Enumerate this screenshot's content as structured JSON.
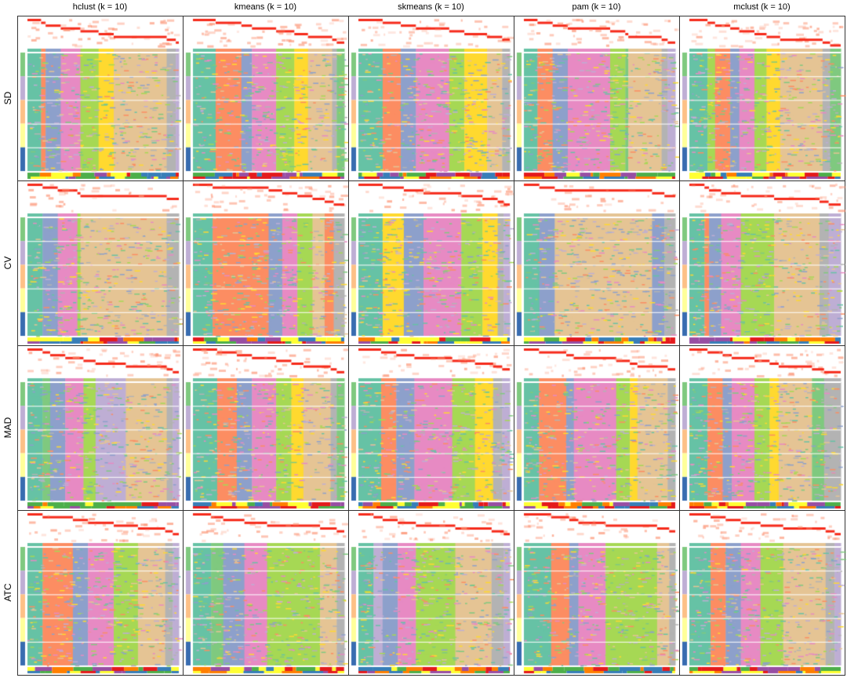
{
  "chart_data": {
    "type": "heatmap",
    "columns": [
      "hclust (k = 10)",
      "kmeans (k = 10)",
      "skmeans (k = 10)",
      "pam (k = 10)",
      "mclust (k = 10)"
    ],
    "rows": [
      "SD",
      "CV",
      "MAD",
      "ATC"
    ],
    "class_colors": [
      "#66C2A5",
      "#FC8D62",
      "#8DA0CB",
      "#E78AC3",
      "#A6D854",
      "#FFD92F",
      "#E5C494",
      "#B3B3B3",
      "#BEAED4",
      "#7FC97F"
    ],
    "row_annotation_colors": [
      "#7FC97F",
      "#BEAED4",
      "#FDC086",
      "#FFFF99",
      "#386CB0"
    ],
    "panels": [
      [
        {
          "classes": [
            [
              0,
              9
            ],
            [
              1,
              3
            ],
            [
              2,
              10
            ],
            [
              3,
              13
            ],
            [
              4,
              12
            ],
            [
              5,
              10
            ],
            [
              6,
              35
            ],
            [
              7,
              6
            ],
            [
              8,
              2
            ]
          ]
        },
        {
          "classes": [
            [
              0,
              15
            ],
            [
              1,
              17
            ],
            [
              2,
              7
            ],
            [
              3,
              16
            ],
            [
              4,
              12
            ],
            [
              5,
              9
            ],
            [
              6,
              16
            ],
            [
              7,
              3
            ],
            [
              9,
              5
            ]
          ]
        },
        {
          "classes": [
            [
              0,
              16
            ],
            [
              1,
              12
            ],
            [
              2,
              10
            ],
            [
              3,
              22
            ],
            [
              4,
              10
            ],
            [
              5,
              15
            ],
            [
              6,
              10
            ],
            [
              7,
              5
            ]
          ]
        },
        {
          "classes": [
            [
              0,
              9
            ],
            [
              1,
              10
            ],
            [
              2,
              10
            ],
            [
              3,
              28
            ],
            [
              4,
              10
            ],
            [
              9,
              2
            ],
            [
              6,
              22
            ],
            [
              7,
              4
            ],
            [
              8,
              5
            ]
          ]
        },
        {
          "classes": [
            [
              0,
              12
            ],
            [
              4,
              5
            ],
            [
              1,
              10
            ],
            [
              2,
              6
            ],
            [
              3,
              10
            ],
            [
              4,
              8
            ],
            [
              5,
              9
            ],
            [
              6,
              28
            ],
            [
              7,
              5
            ],
            [
              9,
              7
            ]
          ]
        }
      ],
      [
        {
          "classes": [
            [
              0,
              10
            ],
            [
              2,
              10
            ],
            [
              3,
              13
            ],
            [
              4,
              2
            ],
            [
              6,
              57
            ],
            [
              7,
              8
            ]
          ]
        },
        {
          "classes": [
            [
              0,
              13
            ],
            [
              1,
              37
            ],
            [
              2,
              9
            ],
            [
              3,
              10
            ],
            [
              4,
              10
            ],
            [
              6,
              8
            ],
            [
              1,
              6
            ],
            [
              7,
              7
            ]
          ]
        },
        {
          "classes": [
            [
              0,
              16
            ],
            [
              5,
              14
            ],
            [
              2,
              13
            ],
            [
              3,
              25
            ],
            [
              4,
              14
            ],
            [
              5,
              10
            ],
            [
              7,
              4
            ],
            [
              8,
              4
            ]
          ]
        },
        {
          "classes": [
            [
              0,
              10
            ],
            [
              2,
              10
            ],
            [
              6,
              63
            ],
            [
              2,
              8
            ],
            [
              7,
              7
            ]
          ]
        },
        {
          "classes": [
            [
              0,
              10
            ],
            [
              1,
              3
            ],
            [
              2,
              8
            ],
            [
              3,
              13
            ],
            [
              4,
              22
            ],
            [
              6,
              30
            ],
            [
              7,
              6
            ],
            [
              8,
              8
            ]
          ]
        }
      ],
      [
        {
          "classes": [
            [
              0,
              10
            ],
            [
              9,
              5
            ],
            [
              2,
              10
            ],
            [
              3,
              12
            ],
            [
              4,
              8
            ],
            [
              8,
              20
            ],
            [
              6,
              27
            ],
            [
              7,
              4
            ],
            [
              8,
              4
            ]
          ]
        },
        {
          "classes": [
            [
              0,
              16
            ],
            [
              1,
              13
            ],
            [
              2,
              10
            ],
            [
              3,
              16
            ],
            [
              4,
              10
            ],
            [
              5,
              8
            ],
            [
              6,
              18
            ],
            [
              7,
              4
            ],
            [
              9,
              5
            ]
          ]
        },
        {
          "classes": [
            [
              0,
              15
            ],
            [
              1,
              10
            ],
            [
              2,
              12
            ],
            [
              3,
              25
            ],
            [
              4,
              15
            ],
            [
              5,
              12
            ],
            [
              7,
              6
            ],
            [
              8,
              5
            ]
          ]
        },
        {
          "classes": [
            [
              0,
              10
            ],
            [
              1,
              18
            ],
            [
              2,
              5
            ],
            [
              3,
              28
            ],
            [
              4,
              9
            ],
            [
              5,
              5
            ],
            [
              6,
              20
            ],
            [
              7,
              5
            ]
          ]
        },
        {
          "classes": [
            [
              0,
              12
            ],
            [
              1,
              10
            ],
            [
              2,
              6
            ],
            [
              3,
              15
            ],
            [
              4,
              10
            ],
            [
              5,
              6
            ],
            [
              6,
              22
            ],
            [
              9,
              8
            ],
            [
              7,
              11
            ]
          ]
        }
      ],
      [
        {
          "classes": [
            [
              0,
              10
            ],
            [
              1,
              20
            ],
            [
              2,
              10
            ],
            [
              3,
              17
            ],
            [
              4,
              16
            ],
            [
              6,
              18
            ],
            [
              7,
              5
            ],
            [
              8,
              4
            ]
          ]
        },
        {
          "classes": [
            [
              0,
              12
            ],
            [
              9,
              8
            ],
            [
              2,
              14
            ],
            [
              3,
              15
            ],
            [
              4,
              35
            ],
            [
              6,
              11
            ],
            [
              7,
              5
            ]
          ]
        },
        {
          "classes": [
            [
              0,
              10
            ],
            [
              8,
              6
            ],
            [
              2,
              10
            ],
            [
              3,
              12
            ],
            [
              4,
              26
            ],
            [
              6,
              24
            ],
            [
              7,
              8
            ],
            [
              8,
              4
            ]
          ]
        },
        {
          "classes": [
            [
              0,
              18
            ],
            [
              1,
              12
            ],
            [
              2,
              6
            ],
            [
              3,
              18
            ],
            [
              4,
              34
            ],
            [
              6,
              8
            ],
            [
              7,
              4
            ]
          ]
        },
        {
          "classes": [
            [
              0,
              14
            ],
            [
              1,
              10
            ],
            [
              2,
              10
            ],
            [
              3,
              13
            ],
            [
              4,
              15
            ],
            [
              6,
              28
            ],
            [
              7,
              6
            ],
            [
              8,
              4
            ]
          ]
        }
      ]
    ]
  }
}
